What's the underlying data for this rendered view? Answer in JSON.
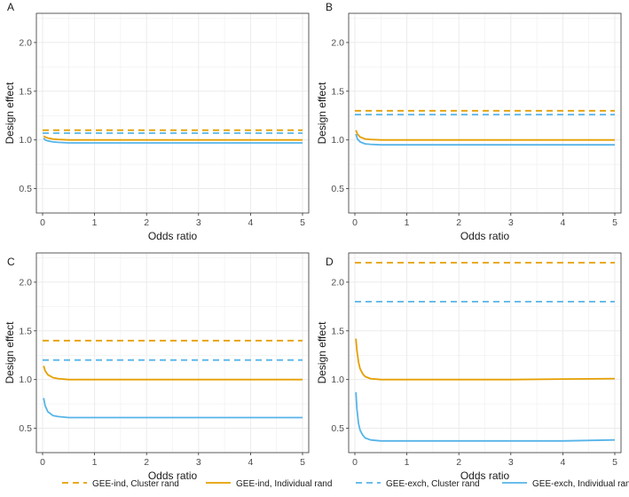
{
  "colors": {
    "gee_ind": "#E69F00",
    "gee_exch": "#56B4E9",
    "grid": "#ebebeb",
    "border": "#333333"
  },
  "legend": [
    {
      "label": "GEE-ind, Cluster rand",
      "color": "#E69F00",
      "dash": true
    },
    {
      "label": "GEE-ind, Individual rand",
      "color": "#E69F00",
      "dash": false
    },
    {
      "label": "GEE-exch, Cluster rand",
      "color": "#56B4E9",
      "dash": true
    },
    {
      "label": "GEE-exch, Individual rand",
      "color": "#56B4E9",
      "dash": false
    }
  ],
  "chart_data": [
    {
      "panel": "A",
      "type": "line",
      "xlabel": "Odds ratio",
      "ylabel": "Design effect",
      "xlim": [
        0,
        5
      ],
      "ylim": [
        0.25,
        2.3
      ],
      "xticks": [
        "0",
        "1",
        "2",
        "3",
        "4",
        "5"
      ],
      "yticks": [
        "0.5",
        "1.0",
        "1.5",
        "2.0"
      ],
      "series": [
        {
          "name": "GEE-ind, Cluster rand",
          "color": "#E69F00",
          "dash": true,
          "x": [
            0,
            5
          ],
          "y": [
            1.1,
            1.1
          ]
        },
        {
          "name": "GEE-exch, Cluster rand",
          "color": "#56B4E9",
          "dash": true,
          "x": [
            0,
            5
          ],
          "y": [
            1.07,
            1.07
          ]
        },
        {
          "name": "GEE-ind, Individual rand",
          "color": "#E69F00",
          "dash": false,
          "x": [
            0.02,
            0.05,
            0.1,
            0.2,
            0.3,
            0.5,
            1,
            2,
            3,
            4,
            5
          ],
          "y": [
            1.04,
            1.03,
            1.02,
            1.01,
            1.005,
            1.0,
            1.0,
            1.0,
            1.0,
            1.0,
            1.0
          ]
        },
        {
          "name": "GEE-exch, Individual rand",
          "color": "#56B4E9",
          "dash": false,
          "x": [
            0.02,
            0.05,
            0.1,
            0.2,
            0.3,
            0.5,
            1,
            2,
            3,
            4,
            5
          ],
          "y": [
            1.02,
            1.0,
            0.99,
            0.98,
            0.975,
            0.97,
            0.97,
            0.97,
            0.97,
            0.97,
            0.97
          ]
        }
      ]
    },
    {
      "panel": "B",
      "type": "line",
      "xlabel": "Odds ratio",
      "ylabel": "Design effect",
      "xlim": [
        0,
        5
      ],
      "ylim": [
        0.25,
        2.3
      ],
      "xticks": [
        "0",
        "1",
        "2",
        "3",
        "4",
        "5"
      ],
      "yticks": [
        "0.5",
        "1.0",
        "1.5",
        "2.0"
      ],
      "series": [
        {
          "name": "GEE-ind, Cluster rand",
          "color": "#E69F00",
          "dash": true,
          "x": [
            0,
            5
          ],
          "y": [
            1.3,
            1.3
          ]
        },
        {
          "name": "GEE-exch, Cluster rand",
          "color": "#56B4E9",
          "dash": true,
          "x": [
            0,
            5
          ],
          "y": [
            1.26,
            1.26
          ]
        },
        {
          "name": "GEE-ind, Individual rand",
          "color": "#E69F00",
          "dash": false,
          "x": [
            0.02,
            0.05,
            0.1,
            0.2,
            0.3,
            0.5,
            1,
            2,
            3,
            4,
            5
          ],
          "y": [
            1.1,
            1.06,
            1.03,
            1.01,
            1.005,
            1.0,
            1.0,
            1.0,
            1.0,
            1.0,
            1.0
          ]
        },
        {
          "name": "GEE-exch, Individual rand",
          "color": "#56B4E9",
          "dash": false,
          "x": [
            0.02,
            0.05,
            0.1,
            0.2,
            0.3,
            0.5,
            1,
            2,
            3,
            4,
            5
          ],
          "y": [
            1.06,
            1.01,
            0.98,
            0.96,
            0.955,
            0.95,
            0.95,
            0.95,
            0.95,
            0.95,
            0.95
          ]
        }
      ]
    },
    {
      "panel": "C",
      "type": "line",
      "xlabel": "Odds ratio",
      "ylabel": "Design effect",
      "xlim": [
        0,
        5
      ],
      "ylim": [
        0.25,
        2.3
      ],
      "xticks": [
        "0",
        "1",
        "2",
        "3",
        "4",
        "5"
      ],
      "yticks": [
        "0.5",
        "1.0",
        "1.5",
        "2.0"
      ],
      "series": [
        {
          "name": "GEE-ind, Cluster rand",
          "color": "#E69F00",
          "dash": true,
          "x": [
            0,
            5
          ],
          "y": [
            1.4,
            1.4
          ]
        },
        {
          "name": "GEE-exch, Cluster rand",
          "color": "#56B4E9",
          "dash": true,
          "x": [
            0,
            5
          ],
          "y": [
            1.2,
            1.2
          ]
        },
        {
          "name": "GEE-ind, Individual rand",
          "color": "#E69F00",
          "dash": false,
          "x": [
            0.02,
            0.05,
            0.1,
            0.2,
            0.3,
            0.5,
            1,
            2,
            3,
            4,
            5
          ],
          "y": [
            1.14,
            1.09,
            1.05,
            1.02,
            1.01,
            1.0,
            1.0,
            1.0,
            1.0,
            1.0,
            1.0
          ]
        },
        {
          "name": "GEE-exch, Individual rand",
          "color": "#56B4E9",
          "dash": false,
          "x": [
            0.02,
            0.05,
            0.1,
            0.2,
            0.3,
            0.5,
            1,
            2,
            3,
            4,
            5
          ],
          "y": [
            0.81,
            0.73,
            0.67,
            0.63,
            0.62,
            0.61,
            0.61,
            0.61,
            0.61,
            0.61,
            0.61
          ]
        }
      ]
    },
    {
      "panel": "D",
      "type": "line",
      "xlabel": "Odds ratio",
      "ylabel": "Design effect",
      "xlim": [
        0,
        5
      ],
      "ylim": [
        0.25,
        2.3
      ],
      "xticks": [
        "0",
        "1",
        "2",
        "3",
        "4",
        "5"
      ],
      "yticks": [
        "0.5",
        "1.0",
        "1.5",
        "2.0"
      ],
      "series": [
        {
          "name": "GEE-ind, Cluster rand",
          "color": "#E69F00",
          "dash": true,
          "x": [
            0,
            5
          ],
          "y": [
            2.2,
            2.2
          ]
        },
        {
          "name": "GEE-exch, Cluster rand",
          "color": "#56B4E9",
          "dash": true,
          "x": [
            0,
            5
          ],
          "y": [
            1.8,
            1.8
          ]
        },
        {
          "name": "GEE-ind, Individual rand",
          "color": "#E69F00",
          "dash": false,
          "x": [
            0.02,
            0.04,
            0.07,
            0.1,
            0.15,
            0.2,
            0.3,
            0.5,
            1,
            2,
            3,
            4,
            5
          ],
          "y": [
            1.42,
            1.3,
            1.18,
            1.11,
            1.06,
            1.03,
            1.01,
            1.0,
            1.0,
            1.0,
            1.0,
            1.005,
            1.01
          ]
        },
        {
          "name": "GEE-exch, Individual rand",
          "color": "#56B4E9",
          "dash": false,
          "x": [
            0.02,
            0.04,
            0.07,
            0.1,
            0.15,
            0.2,
            0.3,
            0.5,
            1,
            2,
            3,
            4,
            5
          ],
          "y": [
            0.87,
            0.7,
            0.55,
            0.48,
            0.43,
            0.4,
            0.38,
            0.37,
            0.37,
            0.37,
            0.37,
            0.37,
            0.38
          ]
        }
      ]
    }
  ]
}
